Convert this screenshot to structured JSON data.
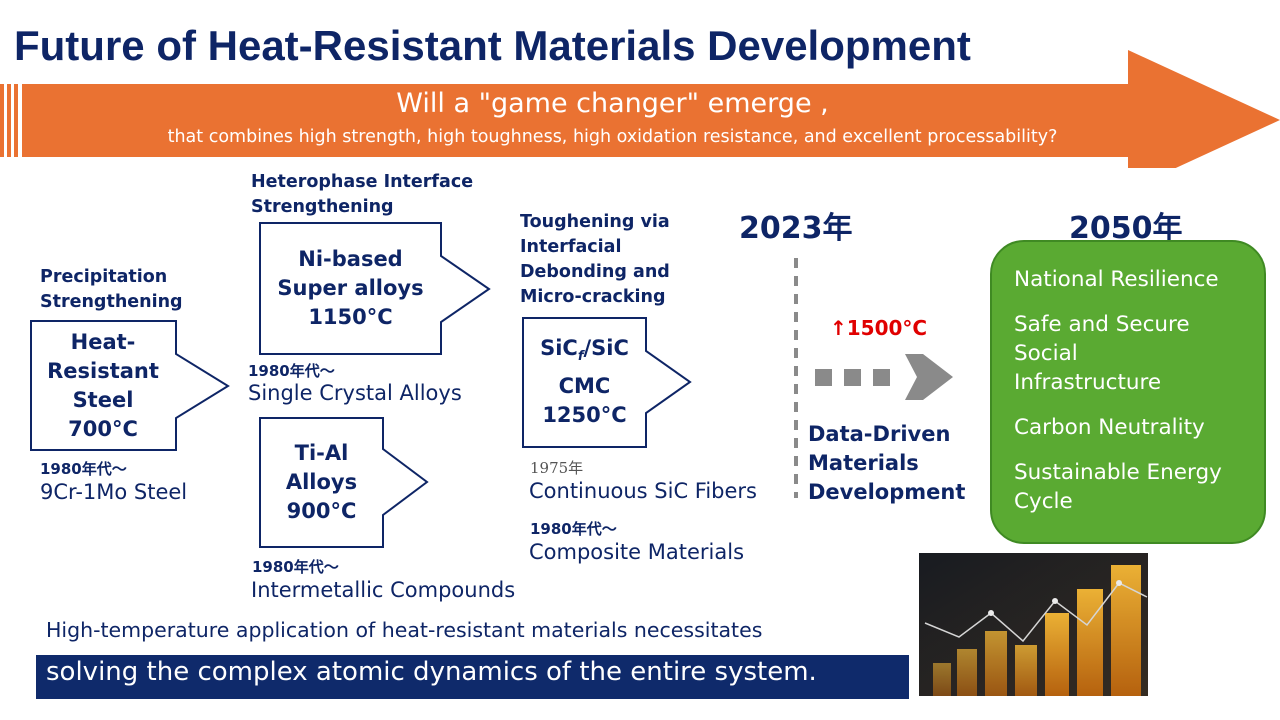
{
  "title": "Future of Heat-Resistant Materials Development",
  "banner": {
    "main": "Will a \"game changer\" emerge ,",
    "sub": "that combines high strength, high toughness, high oxidation resistance, and excellent processability?",
    "color": "#ea7232"
  },
  "stage1": {
    "label_line1": "Precipitation",
    "label_line2": "Strengthening",
    "box_line1": "Heat-",
    "box_line2": "Resistant",
    "box_line3": "Steel",
    "box_line4": "700°C",
    "year": "1980年代〜",
    "item": "9Cr-1Mo Steel"
  },
  "stage2": {
    "label_line1": "Heterophase Interface",
    "label_line2": "Strengthening",
    "box_a_line1": "Ni-based",
    "box_a_line2": "Super alloys",
    "box_a_line3": "1150°C",
    "year_a": "1980年代〜",
    "item_a": "Single Crystal Alloys",
    "box_b_line1": "Ti-Al",
    "box_b_line2": "Alloys",
    "box_b_line3": "900°C",
    "year_b": "1980年代〜",
    "item_b": "Intermetallic Compounds"
  },
  "stage3": {
    "label_line1": "Toughening via",
    "label_line2": "Interfacial",
    "label_line3": "Debonding and",
    "label_line4": "Micro-cracking",
    "box_line1_main": "SiC",
    "box_line1_sub": "f",
    "box_line1_tail": "/SiC",
    "box_line2": "CMC",
    "box_line3": "1250°C",
    "year_a": "1975年",
    "item_a": "Continuous SiC Fibers",
    "year_b": "1980年代〜",
    "item_b": "Composite Materials"
  },
  "year_2023": "2023年",
  "year_2050": "2050年",
  "target_temp": "↑1500°C",
  "data_driven": {
    "line1": "Data-Driven",
    "line2": "Materials",
    "line3": "Development"
  },
  "goals": {
    "item1": "National Resilience",
    "item2_line1": "Safe and Secure",
    "item2_line2": "Social",
    "item2_line3": "Infrastructure",
    "item3": "Carbon Neutrality",
    "item4_line1": "Sustainable Energy",
    "item4_line2": "Cycle",
    "color": "#5aaa32"
  },
  "footer": {
    "line1": "High-temperature application of heat-resistant materials necessitates",
    "line2": "solving the complex atomic dynamics of the entire system."
  }
}
